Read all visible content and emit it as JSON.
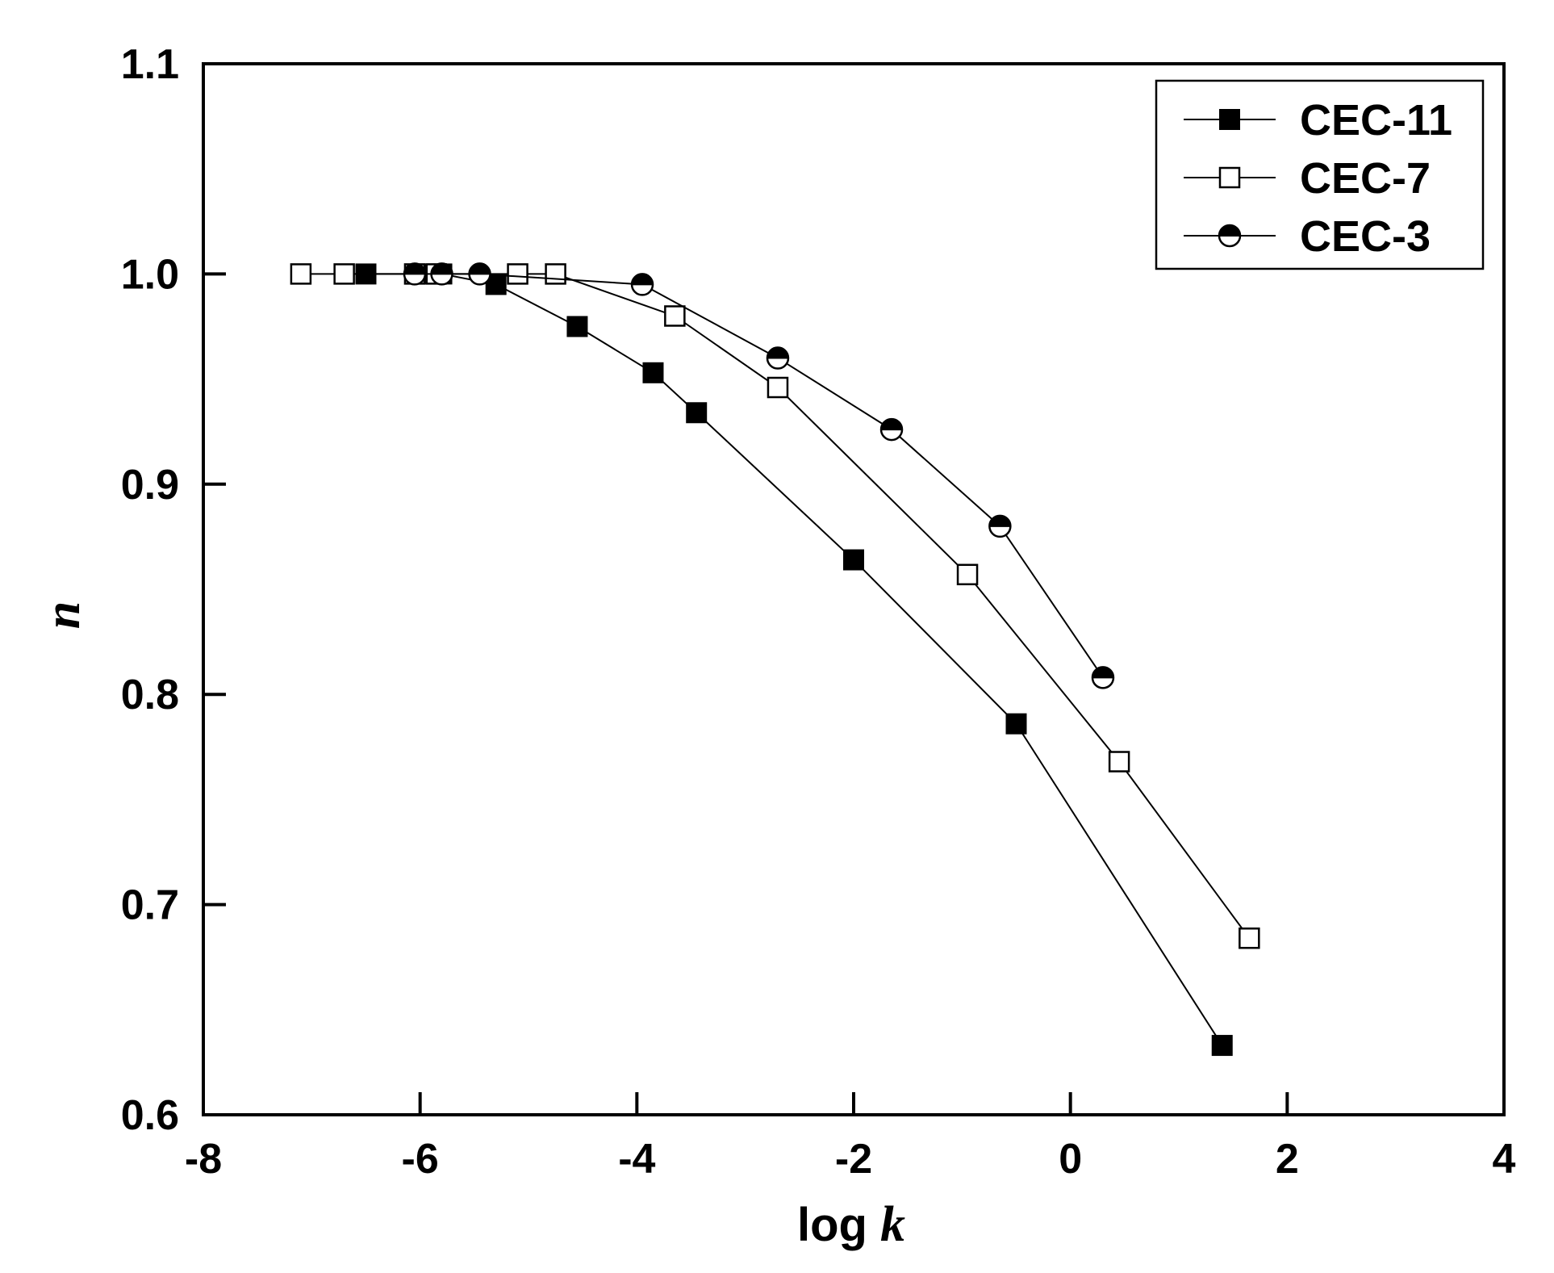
{
  "chart_data": {
    "type": "line",
    "xlabel": {
      "main": "log ",
      "italic": "k"
    },
    "ylabel": "n",
    "xlim": [
      -8,
      4
    ],
    "ylim": [
      0.6,
      1.1
    ],
    "xticks": [
      -8,
      -6,
      -4,
      -2,
      0,
      2,
      4
    ],
    "xtick_labels": [
      "-8",
      "-6",
      "-4",
      "-2",
      "0",
      "2",
      "4"
    ],
    "yticks": [
      0.6,
      0.7,
      0.8,
      0.9,
      1.0,
      1.1
    ],
    "ytick_labels": [
      "0.6",
      "0.7",
      "0.8",
      "0.9",
      "1.0",
      "1.1"
    ],
    "grid": false,
    "legend_position": "top-right",
    "series": [
      {
        "name": "CEC-11",
        "marker": "filled-square",
        "x": [
          -6.5,
          -5.95,
          -5.8,
          -5.3,
          -4.55,
          -3.85,
          -3.45,
          -2.0,
          -0.5,
          1.4
        ],
        "y": [
          1.0,
          1.0,
          1.0,
          0.995,
          0.975,
          0.953,
          0.934,
          0.864,
          0.786,
          0.633
        ]
      },
      {
        "name": "CEC-7",
        "marker": "open-square",
        "x": [
          -7.1,
          -6.7,
          -6.05,
          -5.85,
          -5.1,
          -4.75,
          -3.65,
          -2.7,
          -0.95,
          0.45,
          1.65
        ],
        "y": [
          1.0,
          1.0,
          1.0,
          1.0,
          1.0,
          1.0,
          0.98,
          0.946,
          0.857,
          0.768,
          0.684
        ]
      },
      {
        "name": "CEC-3",
        "marker": "half-filled-circle",
        "x": [
          -6.05,
          -5.8,
          -5.45,
          -3.95,
          -2.7,
          -1.65,
          -0.65,
          0.3
        ],
        "y": [
          1.0,
          1.0,
          1.0,
          0.995,
          0.96,
          0.926,
          0.88,
          0.808
        ]
      }
    ]
  }
}
